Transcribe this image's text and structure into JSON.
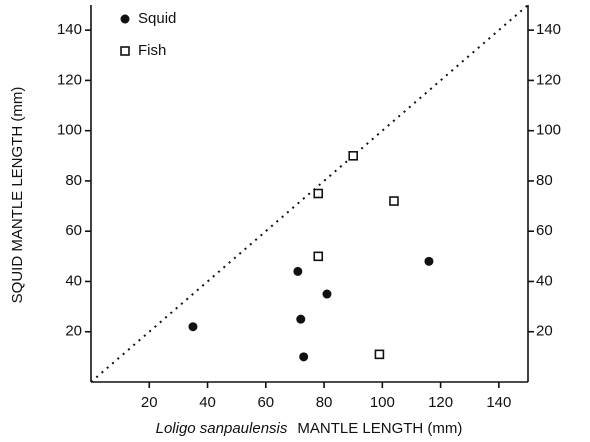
{
  "chart_data": {
    "type": "scatter",
    "xlabel": [
      "Loligo sanpaulensis",
      "MANTLE LENGTH (mm)"
    ],
    "ylabel": "SQUID MANTLE LENGTH (mm)",
    "xlim": [
      0,
      150
    ],
    "ylim": [
      0,
      150
    ],
    "xticks": [
      20,
      40,
      60,
      80,
      100,
      120,
      140
    ],
    "yticks": [
      20,
      40,
      60,
      80,
      100,
      120,
      140
    ],
    "right_axis": true,
    "reference_line": {
      "x": [
        0,
        150
      ],
      "y": [
        0,
        150
      ]
    },
    "series": [
      {
        "name": "Squid",
        "marker": "circle",
        "color": "#111111",
        "x": [
          35,
          71,
          72,
          81,
          73,
          116
        ],
        "values": [
          22,
          44,
          25,
          35,
          10,
          48
        ]
      },
      {
        "name": "Fish",
        "marker": "square",
        "color": "#111111",
        "x": [
          90,
          78,
          78,
          104,
          99
        ],
        "values": [
          90,
          75,
          50,
          72,
          11
        ]
      }
    ]
  }
}
